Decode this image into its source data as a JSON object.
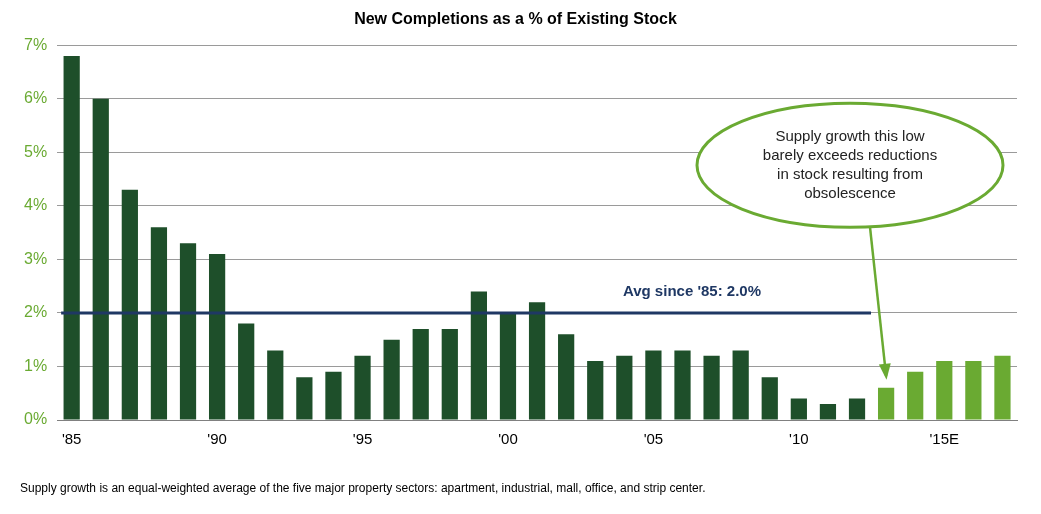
{
  "chart_data": {
    "type": "bar",
    "title": "New Completions as a % of Existing Stock",
    "categories": [
      "'85",
      null,
      null,
      null,
      null,
      "'90",
      null,
      null,
      null,
      null,
      "'95",
      null,
      null,
      null,
      null,
      "'00",
      null,
      null,
      null,
      null,
      "'05",
      null,
      null,
      null,
      null,
      "'10",
      null,
      null,
      null,
      null,
      "'15E",
      null,
      null
    ],
    "values": [
      6.8,
      6.0,
      4.3,
      3.6,
      3.3,
      3.1,
      1.8,
      1.3,
      0.8,
      0.9,
      1.2,
      1.5,
      1.7,
      1.7,
      2.4,
      2.0,
      2.2,
      1.6,
      1.1,
      1.2,
      1.3,
      1.3,
      1.2,
      1.3,
      0.8,
      0.4,
      0.3,
      0.4,
      0.6,
      0.9,
      1.1,
      1.1,
      1.2
    ],
    "colors": [
      "#1e4f2a",
      "#1e4f2a",
      "#1e4f2a",
      "#1e4f2a",
      "#1e4f2a",
      "#1e4f2a",
      "#1e4f2a",
      "#1e4f2a",
      "#1e4f2a",
      "#1e4f2a",
      "#1e4f2a",
      "#1e4f2a",
      "#1e4f2a",
      "#1e4f2a",
      "#1e4f2a",
      "#1e4f2a",
      "#1e4f2a",
      "#1e4f2a",
      "#1e4f2a",
      "#1e4f2a",
      "#1e4f2a",
      "#1e4f2a",
      "#1e4f2a",
      "#1e4f2a",
      "#1e4f2a",
      "#1e4f2a",
      "#1e4f2a",
      "#1e4f2a",
      "#6aaa32",
      "#6aaa32",
      "#6aaa32",
      "#6aaa32",
      "#6aaa32"
    ],
    "ylim": [
      0,
      7
    ],
    "yticks": [
      {
        "value": 0,
        "label": "0%"
      },
      {
        "value": 1,
        "label": "1%"
      },
      {
        "value": 2,
        "label": "2%"
      },
      {
        "value": 3,
        "label": "3%"
      },
      {
        "value": 4,
        "label": "4%"
      },
      {
        "value": 5,
        "label": "5%"
      },
      {
        "value": 6,
        "label": "6%"
      },
      {
        "value": 7,
        "label": "7%"
      }
    ],
    "grid": true,
    "average": {
      "value": 2.0,
      "label": "Avg since '85: 2.0%"
    },
    "annotation": [
      "Supply growth this low",
      "barely exceeds reductions",
      "in stock resulting from",
      "obsolescence"
    ],
    "footnote": "Supply growth is an equal-weighted average of the five major property sectors: apartment, industrial, mall, office, and strip center."
  }
}
